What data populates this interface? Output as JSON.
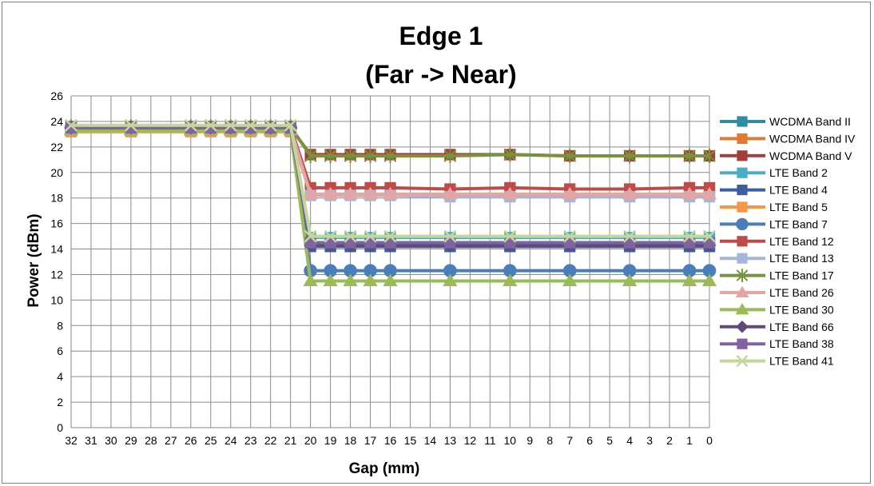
{
  "chart_data": {
    "type": "line",
    "title": "Edge 1",
    "subtitle": "(Far -> Near)",
    "xlabel": "Gap (mm)",
    "ylabel": "Power (dBm)",
    "ylim": [
      0,
      26
    ],
    "y_ticks": [
      "0",
      "2",
      "4",
      "6",
      "8",
      "10",
      "12",
      "14",
      "16",
      "18",
      "20",
      "22",
      "24",
      "26"
    ],
    "categories": [
      "32",
      "31",
      "30",
      "29",
      "28",
      "27",
      "26",
      "25",
      "24",
      "23",
      "22",
      "21",
      "20",
      "19",
      "18",
      "17",
      "16",
      "15",
      "14",
      "13",
      "12",
      "11",
      "10",
      "9",
      "8",
      "7",
      "6",
      "5",
      "4",
      "3",
      "2",
      "1",
      "0"
    ],
    "grid": true,
    "legend_position": "right",
    "series": [
      {
        "name": "WCDMA Band II",
        "color": "#2E8DA0",
        "marker": "square",
        "values": [
          23.4,
          null,
          null,
          23.4,
          null,
          null,
          23.4,
          23.4,
          23.4,
          23.4,
          23.4,
          23.4,
          14.3,
          14.3,
          14.3,
          14.3,
          14.3,
          null,
          null,
          14.3,
          null,
          null,
          14.3,
          null,
          null,
          14.3,
          null,
          null,
          14.3,
          null,
          null,
          14.3,
          14.3
        ]
      },
      {
        "name": "WCDMA Band IV",
        "color": "#E37A2E",
        "marker": "square",
        "values": [
          23.3,
          null,
          null,
          23.3,
          null,
          null,
          23.3,
          23.3,
          23.3,
          23.3,
          23.3,
          23.3,
          14.4,
          14.4,
          14.4,
          14.4,
          14.4,
          null,
          null,
          14.4,
          null,
          null,
          14.4,
          null,
          null,
          14.4,
          null,
          null,
          14.4,
          null,
          null,
          14.4,
          14.4
        ]
      },
      {
        "name": "WCDMA Band V",
        "color": "#A33E3A",
        "marker": "square",
        "values": [
          23.5,
          null,
          null,
          23.5,
          null,
          null,
          23.5,
          23.5,
          23.5,
          23.5,
          23.5,
          23.5,
          21.4,
          21.4,
          21.4,
          21.4,
          21.4,
          null,
          null,
          21.4,
          null,
          null,
          21.4,
          null,
          null,
          21.3,
          null,
          null,
          21.3,
          null,
          null,
          21.3,
          21.3
        ]
      },
      {
        "name": "LTE Band 2",
        "color": "#4BACC6",
        "marker": "square",
        "values": [
          23.6,
          null,
          null,
          23.6,
          null,
          null,
          23.6,
          23.6,
          23.6,
          23.6,
          23.6,
          23.6,
          14.9,
          14.9,
          14.9,
          14.9,
          14.9,
          null,
          null,
          14.9,
          null,
          null,
          14.9,
          null,
          null,
          14.9,
          null,
          null,
          14.9,
          null,
          null,
          14.9,
          14.9
        ]
      },
      {
        "name": "LTE Band 4",
        "color": "#3B5E9E",
        "marker": "square",
        "values": [
          23.4,
          null,
          null,
          23.4,
          null,
          null,
          23.4,
          23.4,
          23.4,
          23.4,
          23.4,
          23.4,
          14.2,
          14.2,
          14.2,
          14.2,
          14.2,
          null,
          null,
          14.2,
          null,
          null,
          14.2,
          null,
          null,
          14.2,
          null,
          null,
          14.2,
          null,
          null,
          14.2,
          14.2
        ]
      },
      {
        "name": "LTE Band 5",
        "color": "#F79646",
        "marker": "square",
        "values": [
          23.2,
          null,
          null,
          23.2,
          null,
          null,
          23.2,
          23.2,
          23.2,
          23.2,
          23.2,
          23.2,
          18.3,
          18.3,
          18.3,
          18.3,
          18.3,
          null,
          null,
          18.3,
          null,
          null,
          18.3,
          null,
          null,
          18.3,
          null,
          null,
          18.3,
          null,
          null,
          18.3,
          18.3
        ]
      },
      {
        "name": "LTE Band 7",
        "color": "#4A7EBB",
        "marker": "circle",
        "values": [
          23.5,
          null,
          null,
          23.5,
          null,
          null,
          23.5,
          23.5,
          23.5,
          23.5,
          23.5,
          23.5,
          12.3,
          12.3,
          12.3,
          12.3,
          12.3,
          null,
          null,
          12.3,
          null,
          null,
          12.3,
          null,
          null,
          12.3,
          null,
          null,
          12.3,
          null,
          null,
          12.3,
          12.3
        ]
      },
      {
        "name": "LTE Band 12",
        "color": "#BE4B48",
        "marker": "square",
        "values": [
          23.6,
          null,
          null,
          23.6,
          null,
          null,
          23.6,
          23.6,
          23.6,
          23.6,
          23.6,
          23.6,
          18.8,
          18.8,
          18.8,
          18.8,
          18.8,
          null,
          null,
          18.7,
          null,
          null,
          18.8,
          null,
          null,
          18.7,
          null,
          null,
          18.7,
          null,
          null,
          18.8,
          18.8
        ]
      },
      {
        "name": "LTE Band 13",
        "color": "#A5B7D8",
        "marker": "square",
        "values": [
          23.5,
          null,
          null,
          23.5,
          null,
          null,
          23.5,
          23.5,
          23.5,
          23.5,
          23.5,
          23.5,
          18.2,
          18.2,
          18.2,
          18.2,
          18.2,
          null,
          null,
          18.1,
          null,
          null,
          18.1,
          null,
          null,
          18.1,
          null,
          null,
          18.1,
          null,
          null,
          18.1,
          18.1
        ]
      },
      {
        "name": "LTE Band 17",
        "color": "#77933C",
        "marker": "asterisk",
        "values": [
          23.6,
          null,
          null,
          23.6,
          null,
          null,
          23.6,
          23.6,
          23.6,
          23.6,
          23.6,
          23.6,
          21.3,
          21.3,
          21.3,
          21.3,
          21.3,
          null,
          null,
          21.3,
          null,
          null,
          21.4,
          null,
          null,
          21.3,
          null,
          null,
          21.3,
          null,
          null,
          21.3,
          21.3
        ]
      },
      {
        "name": "LTE Band 26",
        "color": "#E6A5A3",
        "marker": "triangle",
        "values": [
          23.4,
          null,
          null,
          23.4,
          null,
          null,
          23.4,
          23.4,
          23.4,
          23.4,
          23.4,
          23.4,
          18.3,
          18.3,
          18.3,
          18.3,
          18.3,
          null,
          null,
          18.3,
          null,
          null,
          18.3,
          null,
          null,
          18.3,
          null,
          null,
          18.3,
          null,
          null,
          18.3,
          18.3
        ]
      },
      {
        "name": "LTE Band 30",
        "color": "#9BBB59",
        "marker": "triangle",
        "values": [
          23.3,
          null,
          null,
          23.3,
          null,
          null,
          23.3,
          23.3,
          23.3,
          23.3,
          23.3,
          23.3,
          11.5,
          11.5,
          11.5,
          11.5,
          11.5,
          null,
          null,
          11.5,
          null,
          null,
          11.5,
          null,
          null,
          11.5,
          null,
          null,
          11.5,
          null,
          null,
          11.5,
          11.5
        ]
      },
      {
        "name": "LTE Band 66",
        "color": "#604A7B",
        "marker": "diamond",
        "values": [
          23.5,
          null,
          null,
          23.5,
          null,
          null,
          23.5,
          23.5,
          23.5,
          23.5,
          23.5,
          23.5,
          14.3,
          14.3,
          14.3,
          14.3,
          14.3,
          null,
          null,
          14.3,
          null,
          null,
          14.3,
          null,
          null,
          14.3,
          null,
          null,
          14.3,
          null,
          null,
          14.3,
          14.3
        ]
      },
      {
        "name": "LTE Band 38",
        "color": "#8064A2",
        "marker": "square",
        "values": [
          23.5,
          null,
          null,
          23.5,
          null,
          null,
          23.5,
          23.5,
          23.5,
          23.5,
          23.5,
          23.5,
          14.5,
          14.5,
          14.5,
          14.5,
          14.5,
          null,
          null,
          14.5,
          null,
          null,
          14.5,
          null,
          null,
          14.5,
          null,
          null,
          14.5,
          null,
          null,
          14.5,
          14.5
        ]
      },
      {
        "name": "LTE Band 41",
        "color": "#C4D79B",
        "marker": "x",
        "values": [
          23.7,
          null,
          null,
          23.7,
          null,
          null,
          23.7,
          23.7,
          23.7,
          23.7,
          23.7,
          23.7,
          15.0,
          15.0,
          15.0,
          15.0,
          15.0,
          null,
          null,
          15.0,
          null,
          null,
          15.0,
          null,
          null,
          15.0,
          null,
          null,
          15.0,
          null,
          null,
          15.0,
          15.0
        ]
      }
    ]
  }
}
